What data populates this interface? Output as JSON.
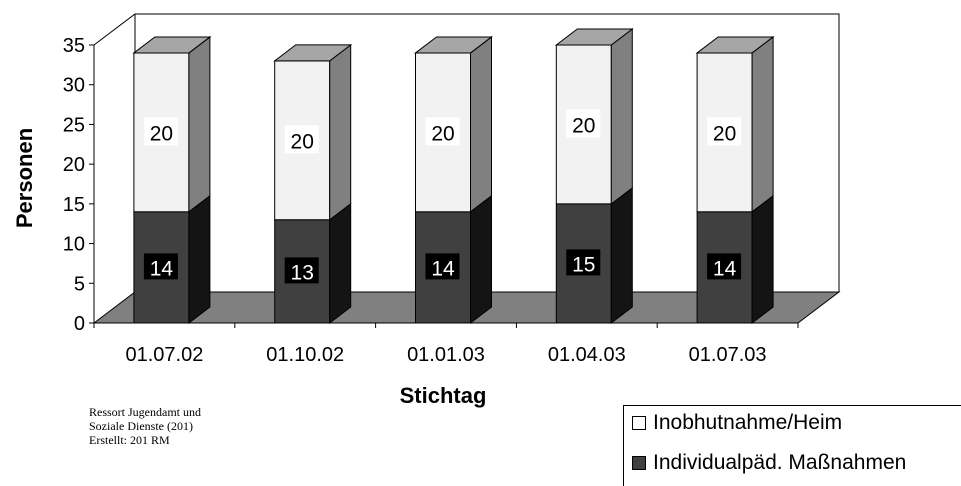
{
  "chart_data": {
    "type": "bar",
    "stacked": true,
    "three_d": true,
    "categories": [
      "01.07.02",
      "01.10.02",
      "01.01.03",
      "01.04.03",
      "01.07.03"
    ],
    "series": [
      {
        "name": "Individualpäd. Maßnahmen",
        "values": [
          14,
          13,
          14,
          15,
          14
        ],
        "color": "#404040"
      },
      {
        "name": "Inobhutnahme/Heim",
        "values": [
          20,
          20,
          20,
          20,
          20
        ],
        "color": "#f2f2f2"
      }
    ],
    "xlabel": "Stichtag",
    "ylabel": "Personen",
    "ylim": [
      0,
      35
    ],
    "yticks": [
      0,
      5,
      10,
      15,
      20,
      25,
      30,
      35
    ],
    "grid": false,
    "legend_position": "bottom-right",
    "floor_color": "#808080"
  },
  "source_note": [
    "Ressort Jugendamt und",
    "Soziale Dienste (201)",
    "Erstellt: 201 RM"
  ]
}
